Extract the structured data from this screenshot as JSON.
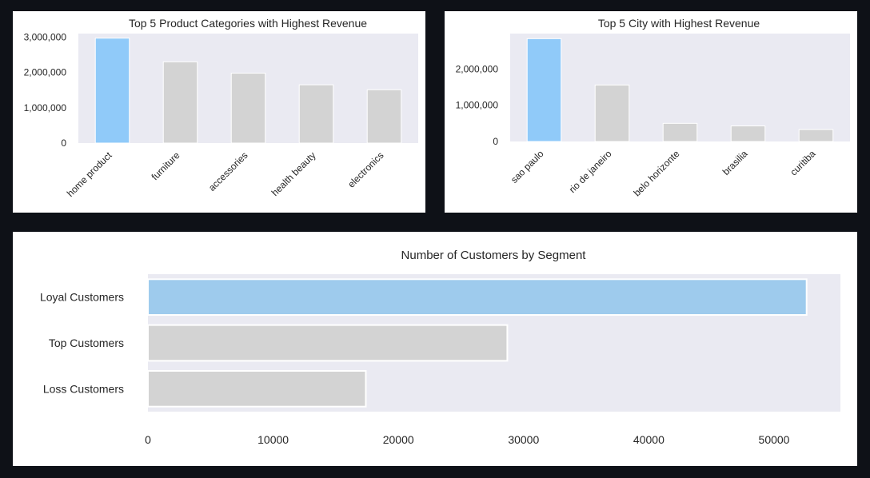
{
  "colors": {
    "background": "#0e1117",
    "panel": "#ffffff",
    "plot_area": "#eaeaf2",
    "highlight": "#90caf9",
    "highlight_segment": "#9ecbed",
    "muted": "#d3d3d3",
    "text": "#262626"
  },
  "chart_data": [
    {
      "id": "categories",
      "type": "bar",
      "title": "Top 5 Product Categories with Highest Revenue",
      "xlabel": "",
      "ylabel": "",
      "categories": [
        "home product",
        "furniture",
        "accessories",
        "health beauty",
        "electronics"
      ],
      "values": [
        2970000,
        2300000,
        1980000,
        1650000,
        1510000
      ],
      "ylim": [
        0,
        3100000
      ],
      "yticks": [
        0,
        1000000,
        2000000,
        3000000
      ],
      "ytick_labels": [
        "0",
        "1,000,000",
        "2,000,000",
        "3,000,000"
      ],
      "highlight_index": 0,
      "grid": false
    },
    {
      "id": "cities",
      "type": "bar",
      "title": "Top 5 City with Highest Revenue",
      "xlabel": "",
      "ylabel": "",
      "categories": [
        "sao paulo",
        "rio de janeiro",
        "belo horizonte",
        "brasilia",
        "curitiba"
      ],
      "values": [
        2840000,
        1560000,
        500000,
        430000,
        330000
      ],
      "ylim": [
        0,
        2980000
      ],
      "yticks": [
        0,
        1000000,
        2000000
      ],
      "ytick_labels": [
        "0",
        "1,000,000",
        "2,000,000"
      ],
      "highlight_index": 0,
      "grid": false
    },
    {
      "id": "segments",
      "type": "bar",
      "orientation": "horizontal",
      "title": "Number of Customers by Segment",
      "xlabel": "",
      "ylabel": "",
      "categories": [
        "Loyal Customers",
        "Top Customers",
        "Loss Customers"
      ],
      "values": [
        52600,
        28700,
        17400
      ],
      "xlim": [
        0,
        55300
      ],
      "xticks": [
        0,
        10000,
        20000,
        30000,
        40000,
        50000
      ],
      "xtick_labels": [
        "0",
        "10000",
        "20000",
        "30000",
        "40000",
        "50000"
      ],
      "highlight_index": 0,
      "grid": false
    }
  ]
}
